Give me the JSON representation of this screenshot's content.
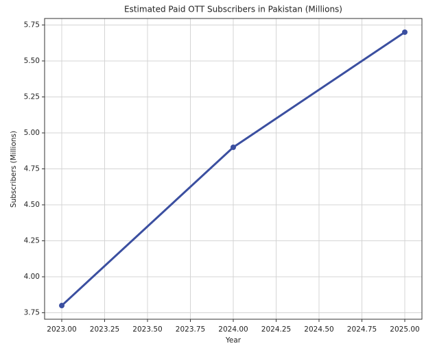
{
  "chart_data": {
    "type": "line",
    "title": "Estimated Paid OTT Subscribers in Pakistan (Millions)",
    "xlabel": "Year",
    "ylabel": "Subscribers (Millions)",
    "x": [
      2023,
      2024,
      2025
    ],
    "series": [
      {
        "name": "Subscribers",
        "color": "#3b4fa0",
        "values": [
          3.8,
          4.9,
          5.7
        ]
      }
    ],
    "xlim": [
      2022.9,
      2025.1
    ],
    "xticks": [
      {
        "value": 2023,
        "label": "2023.00"
      },
      2023.25,
      {
        "value": 2023.5,
        "label": "2023.50"
      },
      2023.75,
      {
        "value": 2024,
        "label": "2024.00"
      },
      2024.25,
      {
        "value": 2024.5,
        "label": "2024.50"
      },
      2024.75,
      {
        "value": 2025,
        "label": "2025.00"
      }
    ],
    "ylim": [
      3.705,
      5.795
    ],
    "yticks": [
      3.75,
      {
        "value": 4,
        "label": "4.00"
      },
      4.25,
      {
        "value": 4.5,
        "label": "4.50"
      },
      4.75,
      {
        "value": 5,
        "label": "5.00"
      },
      5.25,
      {
        "value": 5.5,
        "label": "5.50"
      },
      5.75
    ],
    "grid": true
  }
}
